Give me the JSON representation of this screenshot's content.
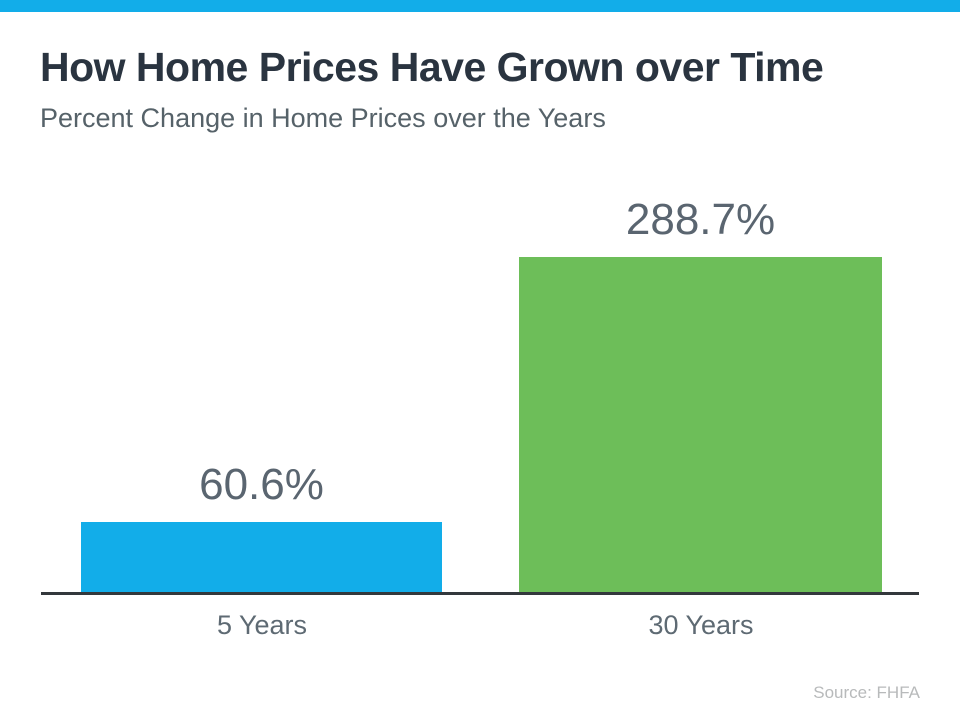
{
  "colors": {
    "accent_top_bar": "#12ade9",
    "bar_blue": "#12ade9",
    "bar_green": "#6dbe59",
    "title_text": "#2a3440",
    "subtitle_text": "#566269",
    "value_label_text": "#5a6570",
    "axis_line": "#33383c",
    "source_text": "#b8babb"
  },
  "chart_data": {
    "type": "bar",
    "title": "How Home Prices Have Grown over Time",
    "subtitle": "Percent Change in Home Prices over the Years",
    "categories": [
      "5 Years",
      "30 Years"
    ],
    "values": [
      60.6,
      288.7
    ],
    "value_labels": [
      "60.6%",
      "288.7%"
    ],
    "bar_colors": [
      "#12ade9",
      "#6dbe59"
    ],
    "xlabel": "",
    "ylabel": "",
    "ylim": [
      0,
      300
    ],
    "grid": false,
    "legend": false,
    "source_note": "Source: FHFA"
  }
}
